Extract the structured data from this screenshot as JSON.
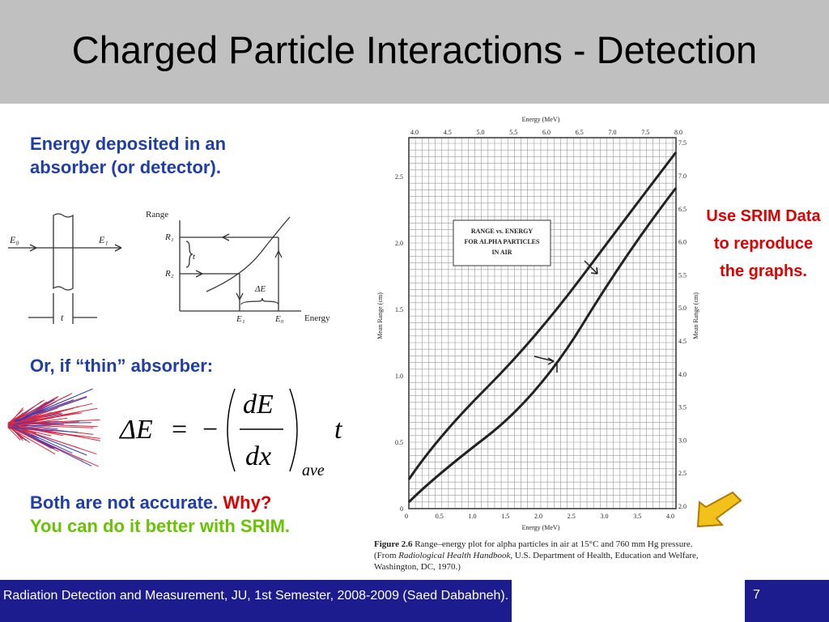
{
  "header": {
    "title": "Charged Particle Interactions - Detection"
  },
  "left": {
    "heading": "Energy deposited in an absorber (or detector).",
    "diagram1": {
      "e0": "E₀",
      "e1": "E₁",
      "t": "t"
    },
    "diagram2": {
      "range": "Range",
      "r1": "R₁",
      "r2": "R₂",
      "t": "t",
      "delta_e": "ΔE",
      "e1": "E₁",
      "e0": "E₀",
      "energy": "Energy"
    },
    "thin": "Or, if “thin” absorber:",
    "equation": {
      "lhs": "ΔE",
      "eq": "=",
      "minus": "−",
      "num": "dE",
      "den": "dx",
      "sub": "ave",
      "t": "t"
    },
    "accurate": "Both are not accurate.",
    "why": "Why?",
    "srim": "You can do it better with SRIM."
  },
  "note": "Use SRIM Data to reproduce the graphs.",
  "figure": {
    "top_axis_title": "Energy (MeV)",
    "bottom_axis_title": "Energy (MeV)",
    "left_axis_title": "Mean Range (cm)",
    "right_axis_title": "Mean Range (cm)",
    "top_ticks": [
      "4.0",
      "4.5",
      "5.0",
      "5.5",
      "6.0",
      "6.5",
      "7.0",
      "7.5",
      "8.0"
    ],
    "bottom_ticks": [
      "0",
      "0.5",
      "1.0",
      "1.5",
      "2.0",
      "2.5",
      "3.0",
      "3.5",
      "4.0"
    ],
    "left_ticks": [
      "0",
      "0.5",
      "1.0",
      "1.5",
      "2.0",
      "2.5"
    ],
    "right_ticks": [
      "2.0",
      "2.5",
      "3.0",
      "3.5",
      "4.0",
      "4.5",
      "5.0",
      "5.5",
      "6.0",
      "6.5",
      "7.0",
      "7.5"
    ],
    "legend": [
      "RANGE vs. ENERGY",
      "FOR ALPHA PARTICLES",
      "IN AIR"
    ],
    "caption": {
      "label": "Figure 2.6",
      "text": "Range–energy plot for alpha particles in air at 15°C and 760 mm Hg pressure. (From ",
      "source": "Radiological Health Handbook",
      "rest": ", U.S. Department of Health, Education and Welfare, Washington, DC, 1970.)"
    }
  },
  "footer": {
    "text": "Radiation Detection and Measurement, JU, 1st Semester, 2008-2009 (Saed Dababneh).",
    "page": "7"
  }
}
